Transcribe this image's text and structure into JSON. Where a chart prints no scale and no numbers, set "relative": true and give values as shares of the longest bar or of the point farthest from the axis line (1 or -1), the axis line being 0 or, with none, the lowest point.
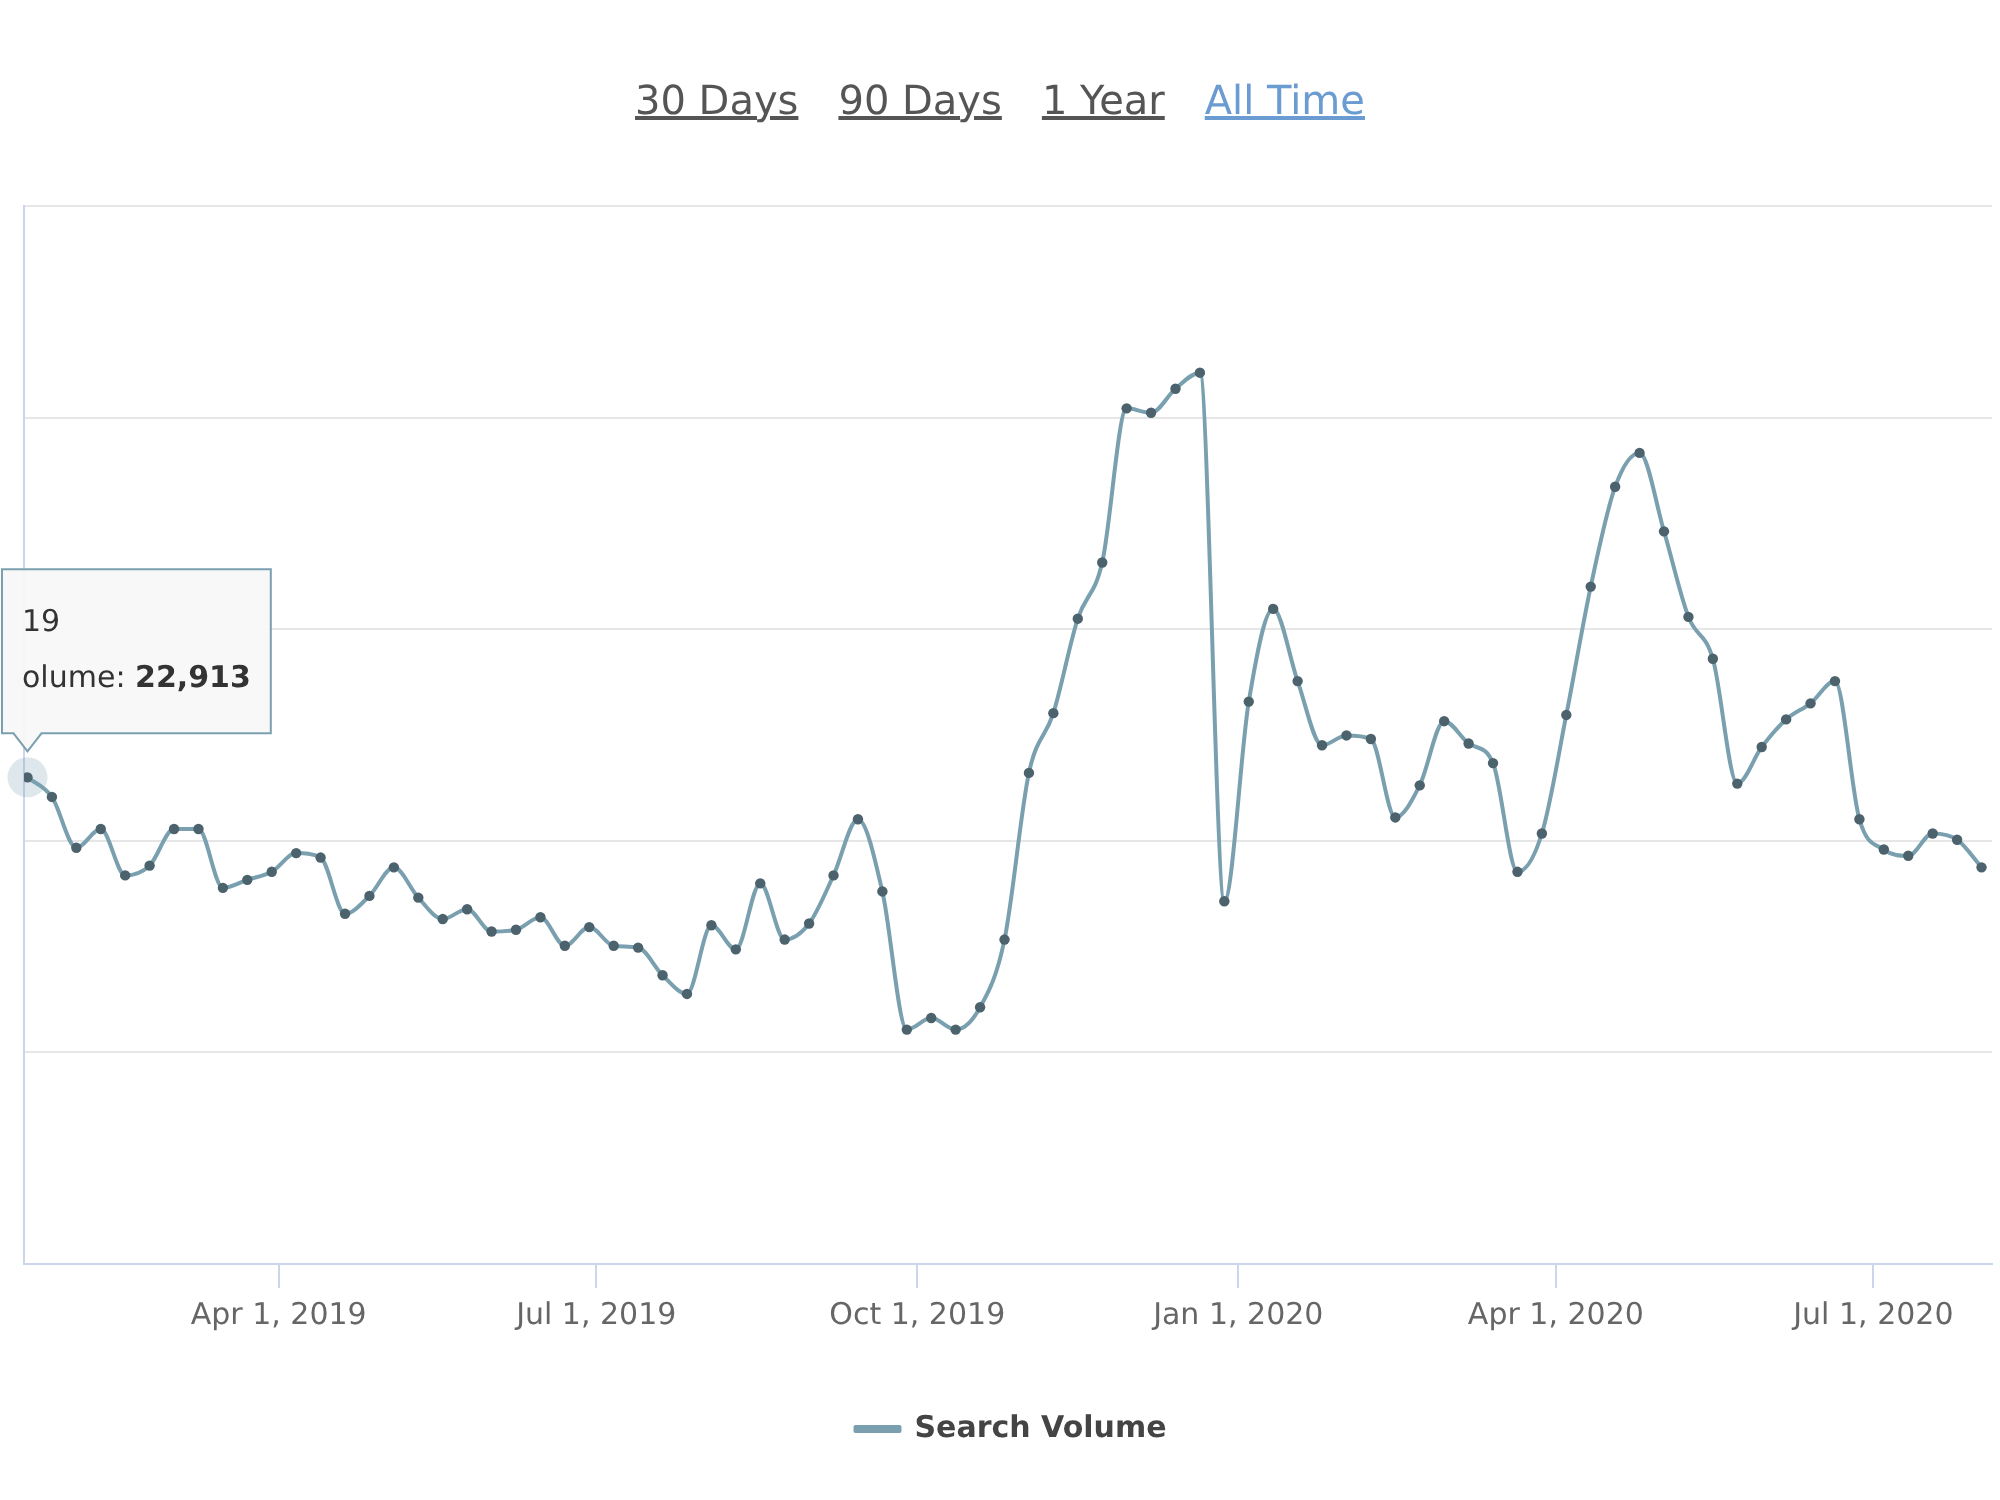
{
  "chart_data": {
    "type": "line",
    "annotations": [
      "30 Days",
      "90 Days",
      "1 Year",
      "All Time",
      {
        "text": "19\nolume: 22,913",
        "x": "2019-01-19",
        "y": 0.546
      }
    ],
    "x": [
      "2019-01-19",
      "2019-01-26",
      "2019-02-02",
      "2019-02-09",
      "2019-02-16",
      "2019-02-23",
      "2019-03-02",
      "2019-03-09",
      "2019-03-16",
      "2019-03-23",
      "2019-03-30",
      "2019-04-06",
      "2019-04-13",
      "2019-04-20",
      "2019-04-27",
      "2019-05-04",
      "2019-05-11",
      "2019-05-18",
      "2019-05-25",
      "2019-06-01",
      "2019-06-08",
      "2019-06-15",
      "2019-06-22",
      "2019-06-29",
      "2019-07-06",
      "2019-07-13",
      "2019-07-20",
      "2019-07-27",
      "2019-08-03",
      "2019-08-10",
      "2019-08-17",
      "2019-08-24",
      "2019-08-31",
      "2019-09-07",
      "2019-09-14",
      "2019-09-21",
      "2019-09-28",
      "2019-10-05",
      "2019-10-12",
      "2019-10-19",
      "2019-10-26",
      "2019-11-02",
      "2019-11-09",
      "2019-11-16",
      "2019-11-23",
      "2019-11-30",
      "2019-12-07",
      "2019-12-14",
      "2019-12-21",
      "2019-12-28",
      "2020-01-04",
      "2020-01-11",
      "2020-01-18",
      "2020-01-25",
      "2020-02-01",
      "2020-02-08",
      "2020-02-15",
      "2020-02-22",
      "2020-02-29",
      "2020-03-07",
      "2020-03-14",
      "2020-03-21",
      "2020-03-28",
      "2020-04-04",
      "2020-04-11",
      "2020-04-18",
      "2020-04-25",
      "2020-05-02",
      "2020-05-09",
      "2020-05-16",
      "2020-05-23",
      "2020-05-30",
      "2020-06-06",
      "2020-06-13",
      "2020-06-20",
      "2020-06-27",
      "2020-07-04",
      "2020-07-11",
      "2020-07-18",
      "2020-07-25",
      "2020-08-01"
    ],
    "series": [
      {
        "name": "Search Volume",
        "color": "#7aa0b0",
        "values": [
          0.546,
          0.524,
          0.467,
          0.488,
          0.436,
          0.447,
          0.488,
          0.488,
          0.422,
          0.431,
          0.44,
          0.461,
          0.456,
          0.393,
          0.413,
          0.445,
          0.411,
          0.387,
          0.398,
          0.373,
          0.375,
          0.389,
          0.357,
          0.378,
          0.357,
          0.355,
          0.324,
          0.303,
          0.38,
          0.353,
          0.427,
          0.364,
          0.382,
          0.436,
          0.499,
          0.418,
          0.263,
          0.276,
          0.263,
          0.288,
          0.364,
          0.551,
          0.618,
          0.724,
          0.787,
          0.96,
          0.955,
          0.982,
          1,
          0.407,
          0.631,
          0.735,
          0.654,
          0.582,
          0.593,
          0.589,
          0.501,
          0.537,
          0.609,
          0.584,
          0.562,
          0.44,
          0.483,
          0.616,
          0.76,
          0.872,
          0.91,
          0.822,
          0.726,
          0.679,
          0.539,
          0.58,
          0.611,
          0.629,
          0.654,
          0.499,
          0.465,
          0.458,
          0.483,
          0.476,
          0.445
        ]
      }
    ],
    "relative": true,
    "xlim": [
      "2019-01-18",
      "2020-08-04"
    ],
    "xticks": [
      {
        "value": "2019-04-01",
        "label": "Apr 1, 2019"
      },
      {
        "value": "2019-07-01",
        "label": "Jul 1, 2019"
      },
      {
        "value": "2019-10-01",
        "label": "Oct 1, 2019"
      },
      {
        "value": "2020-01-01",
        "label": "Jan 1, 2020"
      },
      {
        "value": "2020-04-01",
        "label": "Apr 1, 2020"
      },
      {
        "value": "2020-07-01",
        "label": "Jul 1, 2020"
      }
    ],
    "grid": "y",
    "legend": "bottom",
    "marker": "circle",
    "line_style": "solid"
  }
}
